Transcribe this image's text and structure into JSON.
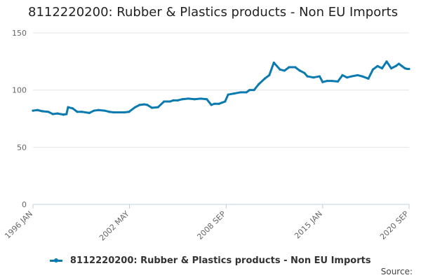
{
  "title": "8112220200: Rubber & Plastics products - Non EU Imports",
  "source_label": "Source:",
  "colors": {
    "series": "#0a7ab0",
    "grid": "#e6e6e6",
    "axis_text": "#666666"
  },
  "chart_data": {
    "type": "line",
    "title": "8112220200: Rubber & Plastics products - Non EU Imports",
    "ylim": [
      0,
      150
    ],
    "yticks": [
      0,
      50,
      100,
      150
    ],
    "xlim": [
      1996.0,
      2020.67
    ],
    "xtick_labels": [
      "1996 JAN",
      "2002 MAY",
      "2008 SEP",
      "2015 JAN",
      "2020 SEP"
    ],
    "xtick_positions": [
      1996.0,
      2002.33,
      2008.67,
      2015.0,
      2020.67
    ],
    "grid": true,
    "legend_position": "bottom",
    "series": [
      {
        "name": "8112220200: Rubber & Plastics products - Non EU Imports",
        "x": [
          1996.0,
          1996.3,
          1996.6,
          1997.0,
          1997.3,
          1997.6,
          1998.0,
          1998.2,
          1998.3,
          1998.6,
          1998.9,
          1999.2,
          1999.7,
          2000.0,
          2000.3,
          2000.7,
          2001.0,
          2001.3,
          2001.7,
          2002.0,
          2002.3,
          2002.7,
          2003.0,
          2003.3,
          2003.5,
          2003.8,
          2004.2,
          2004.6,
          2005.0,
          2005.2,
          2005.5,
          2005.8,
          2006.2,
          2006.6,
          2007.0,
          2007.4,
          2007.7,
          2007.9,
          2008.2,
          2008.4,
          2008.6,
          2008.8,
          2009.2,
          2009.6,
          2010.0,
          2010.2,
          2010.5,
          2010.8,
          2011.2,
          2011.5,
          2011.8,
          2012.2,
          2012.5,
          2012.8,
          2013.2,
          2013.5,
          2013.8,
          2014.0,
          2014.4,
          2014.8,
          2015.0,
          2015.3,
          2015.6,
          2016.0,
          2016.3,
          2016.6,
          2016.9,
          2017.3,
          2017.6,
          2018.0,
          2018.3,
          2018.6,
          2018.9,
          2019.2,
          2019.5,
          2019.8,
          2020.0,
          2020.2,
          2020.4,
          2020.55,
          2020.67
        ],
        "y": [
          82,
          82.5,
          81.5,
          81,
          79,
          79.5,
          78.5,
          79,
          85,
          84,
          81,
          81,
          80,
          82,
          82.5,
          82,
          81,
          80.5,
          80.5,
          80.5,
          81,
          85,
          87,
          87.5,
          87,
          84.5,
          85,
          90,
          90,
          91,
          91,
          92,
          92.5,
          92,
          92.5,
          92,
          87,
          88,
          88,
          89,
          90,
          96,
          97,
          98,
          98,
          100,
          100,
          105,
          110,
          113,
          124,
          118,
          117,
          120,
          120,
          117,
          115,
          112,
          111,
          112,
          107,
          108,
          108,
          107.5,
          113,
          111,
          112,
          113,
          112,
          110,
          118,
          121,
          119,
          125,
          119,
          121,
          123,
          121,
          119,
          118.5,
          118.5
        ]
      }
    ]
  }
}
